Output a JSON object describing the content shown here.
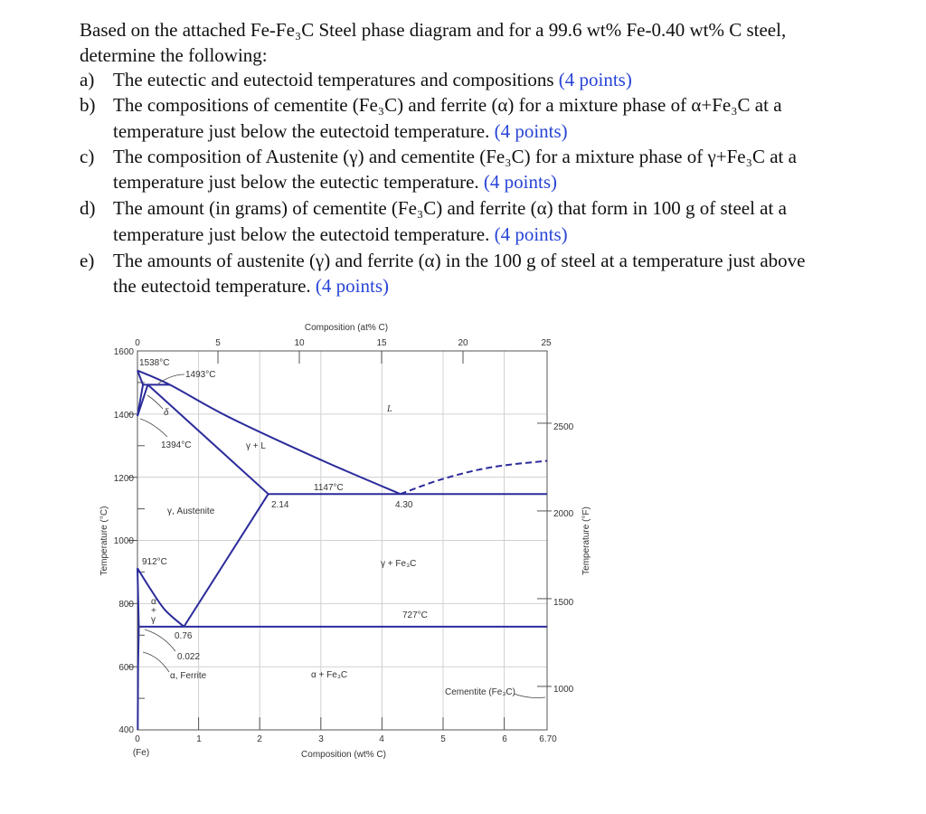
{
  "question": {
    "intro_lines": [
      "Based on the attached Fe-Fe₃C Steel phase diagram and for a 99.6 wt% Fe-0.40 wt% C steel,",
      "determine the following:"
    ],
    "items": [
      {
        "label": "a)",
        "lines": [
          "The eutectic and eutectoid temperatures and compositions"
        ],
        "points": "(4 points)"
      },
      {
        "label": "b)",
        "lines": [
          "The compositions of cementite (Fe₃C) and ferrite (α) for a mixture phase of α+Fe₃C at a",
          "temperature just below the eutectoid temperature."
        ],
        "points": "(4 points)"
      },
      {
        "label": "c)",
        "lines": [
          "The composition of Austenite (γ) and cementite (Fe₃C) for a mixture phase of γ+Fe₃C at a",
          "temperature just below the eutectic temperature."
        ],
        "points": "(4 points)"
      },
      {
        "label": "d)",
        "lines": [
          "The amount (in grams) of cementite (Fe₃C) and ferrite (α) that form in 100 g of steel at a",
          "temperature just below the eutectoid temperature."
        ],
        "points": "(4 points)"
      },
      {
        "label": "e)",
        "lines": [
          "The amounts of austenite (γ) and ferrite (α) in the 100 g of steel at a temperature just above",
          "the eutectoid temperature."
        ],
        "points": "(4 points)"
      }
    ],
    "points_color": "#2744d6"
  },
  "diagram": {
    "line_color": "#2b2b9b",
    "grid_color": "#d0d0d0",
    "top_axis_title": "Composition (at% C)",
    "top_ticks": [
      "0",
      "5",
      "10",
      "15",
      "20",
      "25"
    ],
    "bottom_axis_title": "Composition (wt% C)",
    "bottom_ticks": [
      "0",
      "1",
      "2",
      "3",
      "4",
      "5",
      "6",
      "6.70"
    ],
    "bottom_sublabel": "(Fe)",
    "left_axis_title": "Temperature (°C)",
    "left_ticks": [
      "1600",
      "1400",
      "1200",
      "1000",
      "800",
      "600",
      "400"
    ],
    "right_axis_title": "Temperature (°F)",
    "right_ticks": [
      "2500",
      "2000",
      "1500",
      "1000"
    ],
    "labels": {
      "t1538": "1538°C",
      "t1493": "1493°C",
      "delta": "δ",
      "t1394": "1394°C",
      "gamma_l": "γ + L",
      "liquid": "L",
      "t1147": "1147°C",
      "c214": "2.14",
      "c430": "4.30",
      "austenite": "γ, Austenite",
      "t912": "912°C",
      "gamma_fe3c": "γ + Fe₃C",
      "alpha": "α",
      "plus": "+",
      "gamma": "γ",
      "t727": "727°C",
      "c076": "0.76",
      "c0022": "0.022",
      "ferrite": "α, Ferrite",
      "alpha_fe3c": "α + Fe₃C",
      "cementite": "Cementite (Fe₃C)"
    },
    "boundaries_wt_c": {
      "liquidus": [
        [
          0,
          1538
        ],
        [
          0.53,
          1493
        ],
        [
          1.5,
          1390
        ],
        [
          3.0,
          1255
        ],
        [
          4.3,
          1147
        ]
      ],
      "liquidus_fe3c_dashed": [
        [
          4.3,
          1147
        ],
        [
          5.0,
          1195
        ],
        [
          5.8,
          1232
        ],
        [
          6.7,
          1252
        ]
      ],
      "peritectic": [
        [
          0.09,
          1493
        ],
        [
          0.53,
          1493
        ]
      ],
      "delta_left": [
        [
          0,
          1538
        ],
        [
          0.09,
          1493
        ],
        [
          0,
          1394
        ]
      ],
      "delta_gamma": [
        [
          0,
          1394
        ],
        [
          0.17,
          1493
        ]
      ],
      "solidus": [
        [
          0.17,
          1493
        ],
        [
          2.14,
          1147
        ]
      ],
      "eutectic": [
        [
          2.14,
          1147
        ],
        [
          6.7,
          1147
        ]
      ],
      "acm": [
        [
          2.14,
          1147
        ],
        [
          0.76,
          727
        ]
      ],
      "a3": [
        [
          0,
          912
        ],
        [
          0.2,
          850
        ],
        [
          0.45,
          780
        ],
        [
          0.76,
          727
        ]
      ],
      "alpha_gamma": [
        [
          0,
          912
        ],
        [
          0.022,
          727
        ]
      ],
      "eutectoid": [
        [
          0.022,
          727
        ],
        [
          6.7,
          727
        ]
      ],
      "alpha_solvus": [
        [
          0.022,
          727
        ],
        [
          0.01,
          600
        ],
        [
          0.005,
          400
        ]
      ]
    }
  }
}
